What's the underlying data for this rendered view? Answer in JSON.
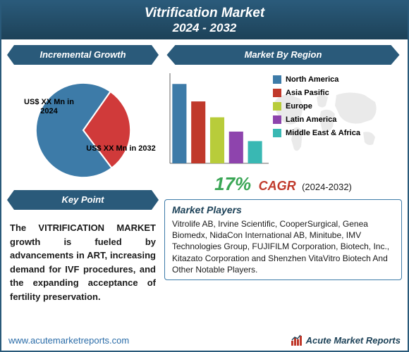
{
  "header": {
    "title": "Vitrification Market",
    "subtitle": "2024 - 2032",
    "bg_gradient_from": "#2a5a7a",
    "bg_gradient_to": "#1d4258"
  },
  "incremental_growth": {
    "banner_label": "Incremental Growth",
    "banner_color": "#2a5a7a",
    "pie": {
      "type": "pie",
      "slices": [
        {
          "label": "US$ XX Mn in 2024",
          "fraction": 0.3,
          "color": "#d03a3a"
        },
        {
          "label": "US$ XX Mn in 2032",
          "fraction": 0.7,
          "color": "#3d7ba8"
        }
      ],
      "start_angle_deg": -55,
      "border_color": "#ffffff",
      "border_width": 2,
      "label_fontsize": 11,
      "label_color": "#000000"
    }
  },
  "key_point": {
    "banner_label": "Key Point",
    "banner_color": "#2a5a7a",
    "text": "The VITRIFICATION MARKET growth is fueled by advancements in ART, increasing demand for IVF procedures, and the expanding acceptance of fertility preservation.",
    "fontsize": 13,
    "font_weight": "bold"
  },
  "market_by_region": {
    "banner_label": "Market By Region",
    "banner_color": "#2a5a7a",
    "bar_chart": {
      "type": "bar",
      "categories": [
        "North America",
        "Asia Pasific",
        "Europe",
        "Latin America",
        "Middle East & Africa"
      ],
      "values": [
        100,
        78,
        58,
        40,
        28
      ],
      "bar_colors": [
        "#3d7ba8",
        "#c0392b",
        "#b8cc3a",
        "#8e44ad",
        "#39b8b3"
      ],
      "ylim": [
        0,
        110
      ],
      "bar_width": 0.75,
      "axis_color": "#666666",
      "show_axis_labels": false
    },
    "legend_items": [
      {
        "label": "North America",
        "color": "#3d7ba8"
      },
      {
        "label": "Asia Pasific",
        "color": "#c0392b"
      },
      {
        "label": "Europe",
        "color": "#b8cc3a"
      },
      {
        "label": "Latin America",
        "color": "#8e44ad"
      },
      {
        "label": "Middle East & Africa",
        "color": "#39b8b3"
      }
    ],
    "map_fill": "#b0b0b0",
    "map_opacity": 0.25
  },
  "cagr": {
    "value": "17%",
    "value_color": "#3aa655",
    "label": "CAGR",
    "label_color": "#c0392b",
    "period": "(2024-2032)",
    "value_fontsize": 26,
    "label_fontsize": 18
  },
  "market_players": {
    "title": "Market Players",
    "title_color": "#1d4258",
    "border_color": "#3d7ba8",
    "text": "Vitrolife AB, Irvine Scientific, CooperSurgical, Genea Biomedx, NidaCon International AB, Minitube, IMV Technologies Group, FUJIFILM Corporation, Biotech, Inc., Kitazato Corporation and Shenzhen VitaVitro Biotech And Other Notable Players.",
    "fontsize": 12
  },
  "footer": {
    "url": "www.acutemarketreports.com",
    "url_color": "#2a6ca8",
    "logo_text": "Acute Market Reports",
    "logo_color": "#1d4258",
    "logo_icon_color": "#c0392b"
  }
}
